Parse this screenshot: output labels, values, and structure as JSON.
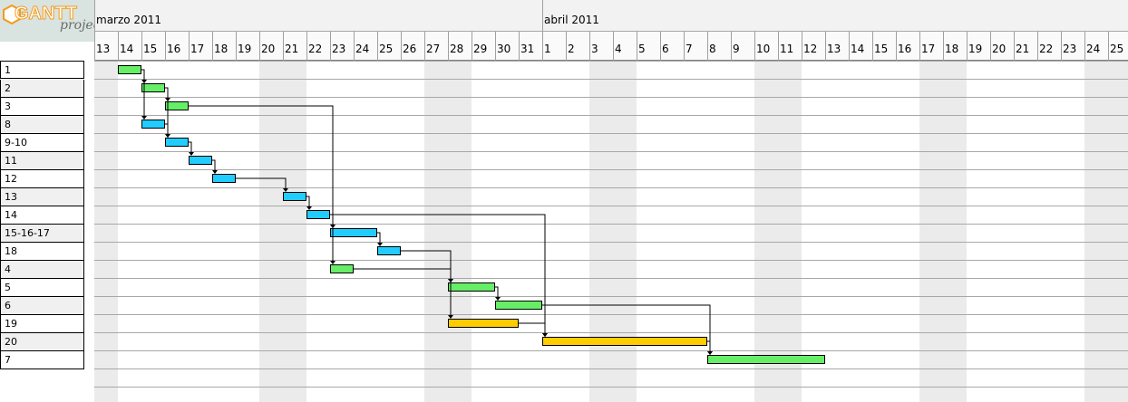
{
  "logo": {
    "title": "GANTT",
    "subtitle": "project"
  },
  "months": [
    {
      "label": "marzo 2011"
    },
    {
      "label": "abril 2011"
    }
  ],
  "days": [
    "13",
    "14",
    "15",
    "16",
    "17",
    "18",
    "19",
    "20",
    "21",
    "22",
    "23",
    "24",
    "25",
    "26",
    "27",
    "28",
    "29",
    "30",
    "31",
    "1",
    "2",
    "3",
    "4",
    "5",
    "6",
    "7",
    "8",
    "9",
    "10",
    "11",
    "12",
    "13",
    "14",
    "15",
    "16",
    "17",
    "18",
    "19",
    "20",
    "21",
    "22",
    "23",
    "24",
    "25"
  ],
  "weekend_columns": [
    0,
    7,
    8,
    14,
    15,
    21,
    22,
    28,
    29,
    35,
    36,
    42,
    43
  ],
  "colors": {
    "green": "#66ee66",
    "blue": "#22ccff",
    "orange": "#ffcc00",
    "grid": "#a0a0a0",
    "weekend": "#ebebeb"
  },
  "tasks": [
    {
      "name": "1",
      "start": 1,
      "duration": 1,
      "color": "green"
    },
    {
      "name": "2",
      "start": 2,
      "duration": 1,
      "color": "green"
    },
    {
      "name": "3",
      "start": 3,
      "duration": 1,
      "color": "green"
    },
    {
      "name": "8",
      "start": 2,
      "duration": 1,
      "color": "blue"
    },
    {
      "name": "9-10",
      "start": 3,
      "duration": 1,
      "color": "blue"
    },
    {
      "name": "11",
      "start": 4,
      "duration": 1,
      "color": "blue"
    },
    {
      "name": "12",
      "start": 5,
      "duration": 1,
      "color": "blue"
    },
    {
      "name": "13",
      "start": 8,
      "duration": 1,
      "color": "blue"
    },
    {
      "name": "14",
      "start": 9,
      "duration": 1,
      "color": "blue"
    },
    {
      "name": "15-16-17",
      "start": 10,
      "duration": 2,
      "color": "blue"
    },
    {
      "name": "18",
      "start": 12,
      "duration": 1,
      "color": "blue"
    },
    {
      "name": "4",
      "start": 10,
      "duration": 1,
      "color": "green"
    },
    {
      "name": "5",
      "start": 15,
      "duration": 2,
      "color": "green"
    },
    {
      "name": "6",
      "start": 17,
      "duration": 2,
      "color": "green"
    },
    {
      "name": "19",
      "start": 15,
      "duration": 3,
      "color": "orange"
    },
    {
      "name": "20",
      "start": 19,
      "duration": 7,
      "color": "orange"
    },
    {
      "name": "7",
      "start": 26,
      "duration": 5,
      "color": "green"
    }
  ],
  "dependencies": [
    [
      0,
      1
    ],
    [
      0,
      3
    ],
    [
      1,
      2
    ],
    [
      1,
      4
    ],
    [
      3,
      4
    ],
    [
      4,
      5
    ],
    [
      5,
      6
    ],
    [
      6,
      7
    ],
    [
      7,
      8
    ],
    [
      2,
      9
    ],
    [
      8,
      9
    ],
    [
      9,
      10
    ],
    [
      2,
      11
    ],
    [
      8,
      15
    ],
    [
      10,
      12
    ],
    [
      11,
      12
    ],
    [
      11,
      14
    ],
    [
      12,
      13
    ],
    [
      13,
      15
    ],
    [
      14,
      15
    ],
    [
      15,
      16
    ],
    [
      13,
      16
    ]
  ]
}
